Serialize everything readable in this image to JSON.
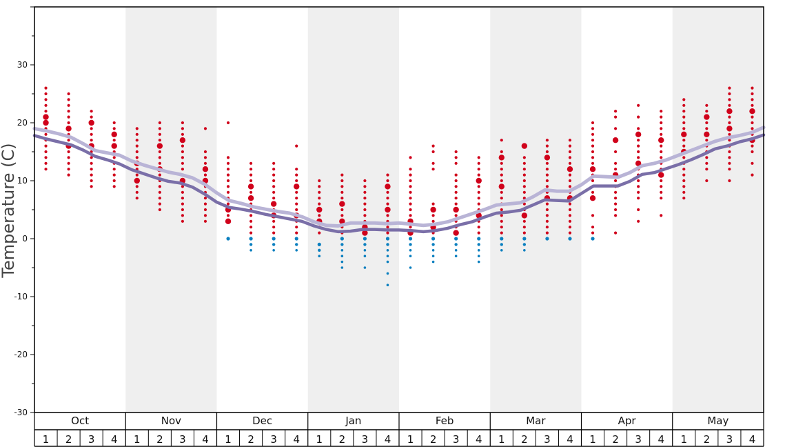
{
  "chart_data": {
    "type": "scatter",
    "ylabel": "Temperature (C)",
    "ylim": [
      -30,
      40
    ],
    "yticks": [
      "30",
      "20",
      "10",
      "0",
      "-10",
      "-20",
      "-30"
    ],
    "ytick_values": [
      30,
      20,
      10,
      0,
      -10,
      -20,
      -30
    ],
    "months": [
      "Oct",
      "Nov",
      "Dec",
      "Jan",
      "Feb",
      "Mar",
      "Apr",
      "May"
    ],
    "weeks": [
      "1",
      "2",
      "3",
      "4"
    ],
    "colors": {
      "warm_dot": "#d0021b",
      "cold_dot": "#0a7fbf",
      "line_max": "#b9b4d6",
      "line_min": "#7a6fa8",
      "band": "#efefef"
    },
    "series": [
      {
        "name": "",
        "style": "line_max",
        "values": [
          19,
          18.6,
          18.1,
          17.5,
          16.4,
          15.2,
          14.8,
          14.4,
          13.4,
          12.7,
          12.1,
          11.5,
          11.1,
          10.5,
          9.4,
          7.9,
          6.6,
          6.1,
          5.5,
          5.1,
          4.7,
          4.4,
          3.8,
          2.9,
          2.3,
          2.2,
          2.7,
          2.7,
          2.7,
          2.6,
          2.7,
          2.5,
          2.3,
          2.5,
          2.9,
          3.6,
          4.3,
          5,
          5.8,
          6,
          6.2,
          7.2,
          8.4,
          8.2,
          8.2,
          9.3,
          10.8,
          10.7,
          10.6,
          11.4,
          12.6,
          13,
          13.6,
          14.4,
          15.2,
          16,
          16.8,
          17.4,
          17.8,
          18.3,
          19.2
        ]
      },
      {
        "name": "",
        "style": "line_min",
        "values": [
          17.8,
          17.2,
          16.7,
          16.2,
          15.3,
          14.2,
          13.6,
          12.9,
          11.9,
          11.2,
          10.5,
          9.9,
          9.6,
          8.9,
          7.7,
          6.3,
          5.4,
          5.1,
          4.7,
          4.2,
          3.8,
          3.4,
          3,
          2.2,
          1.6,
          1.2,
          1.3,
          1.6,
          1.6,
          1.5,
          1.5,
          1.4,
          1.2,
          1.4,
          1.8,
          2.4,
          2.9,
          3.7,
          4.4,
          4.6,
          4.9,
          5.8,
          6.7,
          6.6,
          6.5,
          7.8,
          9.1,
          9.1,
          9.1,
          9.9,
          11.1,
          11.4,
          12.1,
          12.8,
          13.6,
          14.5,
          15.5,
          16,
          16.7,
          17.2,
          17.9
        ]
      }
    ],
    "points": [
      {
        "week": 0,
        "hot": [
          26,
          25,
          24,
          23,
          22,
          21,
          20,
          19,
          18,
          17,
          16,
          15,
          14,
          13,
          12
        ],
        "big": [
          21,
          20
        ],
        "cold": []
      },
      {
        "week": 1,
        "hot": [
          25,
          24,
          23,
          22,
          21,
          20,
          19,
          18,
          17,
          16,
          15,
          14,
          13,
          12,
          11
        ],
        "big": [
          19,
          16
        ],
        "cold": []
      },
      {
        "week": 2,
        "hot": [
          22,
          21,
          20,
          19,
          18,
          17,
          16,
          15,
          14,
          13,
          12,
          11,
          10,
          9
        ],
        "big": [
          20,
          16
        ],
        "cold": []
      },
      {
        "week": 3,
        "hot": [
          20,
          19,
          18,
          17,
          16,
          15,
          14,
          13,
          12,
          11,
          10,
          9
        ],
        "big": [
          18,
          16
        ],
        "cold": []
      },
      {
        "week": 4,
        "hot": [
          19,
          18,
          17,
          16,
          15,
          14,
          13,
          12,
          11,
          10,
          9,
          8,
          7
        ],
        "big": [
          13,
          10
        ],
        "cold": []
      },
      {
        "week": 5,
        "hot": [
          20,
          19,
          18,
          17,
          16,
          15,
          14,
          13,
          12,
          11,
          10,
          9,
          8,
          7,
          6,
          5
        ],
        "big": [
          16,
          12
        ],
        "cold": []
      },
      {
        "week": 6,
        "hot": [
          20,
          19,
          18,
          17,
          16,
          15,
          14,
          13,
          12,
          11,
          10,
          9,
          8,
          7,
          6,
          5,
          4,
          3
        ],
        "big": [
          17,
          10
        ],
        "cold": []
      },
      {
        "week": 7,
        "hot": [
          19,
          15,
          14,
          13,
          12,
          11,
          10,
          9,
          8,
          7,
          6,
          5,
          4,
          3
        ],
        "big": [
          12,
          10
        ],
        "cold": []
      },
      {
        "week": 8,
        "hot": [
          20,
          14,
          13,
          12,
          11,
          10,
          9,
          8,
          7,
          6,
          5,
          4,
          3
        ],
        "big": [
          5,
          3
        ],
        "cold": [
          0
        ]
      },
      {
        "week": 9,
        "hot": [
          13,
          12,
          11,
          10,
          9,
          8,
          7,
          6,
          5,
          4,
          3,
          2,
          1
        ],
        "big": [
          9,
          7
        ],
        "cold": [
          0,
          -1,
          -2
        ]
      },
      {
        "week": 10,
        "hot": [
          13,
          12,
          11,
          10,
          9,
          8,
          7,
          6,
          5,
          4,
          3,
          2,
          1
        ],
        "big": [
          6,
          4
        ],
        "cold": [
          0,
          -1,
          -2
        ]
      },
      {
        "week": 11,
        "hot": [
          16,
          12,
          11,
          10,
          9,
          8,
          7,
          6,
          5,
          4,
          3,
          2,
          1
        ],
        "big": [
          9,
          4
        ],
        "cold": [
          0,
          -1,
          -2
        ]
      },
      {
        "week": 12,
        "hot": [
          10,
          9,
          8,
          7,
          6,
          5,
          4,
          3,
          2,
          1
        ],
        "big": [
          5,
          3
        ],
        "cold": [
          -1,
          -2,
          -3
        ]
      },
      {
        "week": 13,
        "hot": [
          11,
          10,
          9,
          8,
          7,
          6,
          5,
          4,
          3,
          2,
          1
        ],
        "big": [
          6,
          3
        ],
        "cold": [
          0,
          -1,
          -2,
          -3,
          -4,
          -5
        ]
      },
      {
        "week": 14,
        "hot": [
          10,
          9,
          8,
          7,
          6,
          5,
          4,
          3,
          2,
          1
        ],
        "big": [
          2,
          1
        ],
        "cold": [
          0,
          -1,
          -2,
          -3,
          -5
        ]
      },
      {
        "week": 15,
        "hot": [
          11,
          10,
          9,
          8,
          7,
          6,
          5,
          4,
          3,
          2,
          1
        ],
        "big": [
          9,
          5
        ],
        "cold": [
          0,
          -1,
          -2,
          -3,
          -4,
          -6,
          -8
        ]
      },
      {
        "week": 16,
        "hot": [
          14,
          12,
          11,
          10,
          9,
          8,
          7,
          6,
          5,
          4,
          3,
          2,
          1
        ],
        "big": [
          3,
          1
        ],
        "cold": [
          0,
          -1,
          -2,
          -3,
          -5
        ]
      },
      {
        "week": 17,
        "hot": [
          16,
          15,
          13,
          12,
          6,
          5,
          4,
          3,
          2,
          1
        ],
        "big": [
          5,
          2
        ],
        "cold": [
          0,
          -1,
          -2,
          -3,
          -4
        ]
      },
      {
        "week": 18,
        "hot": [
          15,
          14,
          13,
          11,
          10,
          9,
          8,
          7,
          6,
          5,
          4,
          3,
          2,
          1
        ],
        "big": [
          5,
          1
        ],
        "cold": [
          0,
          -1,
          -2,
          -3
        ]
      },
      {
        "week": 19,
        "hot": [
          14,
          13,
          12,
          11,
          10,
          9,
          8,
          7,
          6,
          5,
          4,
          3,
          2,
          1
        ],
        "big": [
          10,
          4
        ],
        "cold": [
          0,
          -1,
          -2,
          -3,
          -4
        ]
      },
      {
        "week": 20,
        "hot": [
          17,
          15,
          14,
          13,
          12,
          11,
          10,
          9,
          8,
          7,
          6,
          5,
          4,
          3,
          2,
          1
        ],
        "big": [
          14,
          9
        ],
        "cold": [
          0,
          -1,
          -2
        ]
      },
      {
        "week": 21,
        "hot": [
          16,
          14,
          13,
          12,
          11,
          10,
          9,
          8,
          7,
          6,
          5,
          4,
          3,
          2,
          1
        ],
        "big": [
          16,
          4
        ],
        "cold": [
          0,
          -1,
          -2
        ]
      },
      {
        "week": 22,
        "hot": [
          17,
          16,
          15,
          14,
          13,
          12,
          11,
          10,
          9,
          8,
          7,
          6,
          5,
          4,
          3,
          2,
          1
        ],
        "big": [
          14,
          7
        ],
        "cold": [
          0
        ]
      },
      {
        "week": 23,
        "hot": [
          17,
          16,
          15,
          14,
          13,
          12,
          11,
          10,
          9,
          8,
          7,
          6,
          5,
          4,
          3,
          2,
          1
        ],
        "big": [
          12,
          7
        ],
        "cold": [
          0
        ]
      },
      {
        "week": 24,
        "hot": [
          20,
          19,
          18,
          17,
          16,
          15,
          14,
          13,
          12,
          11,
          10,
          9,
          8,
          7,
          4,
          2,
          1
        ],
        "big": [
          12,
          7
        ],
        "cold": [
          0
        ]
      },
      {
        "week": 25,
        "hot": [
          22,
          21,
          19,
          17,
          15,
          13,
          12,
          11,
          10,
          9,
          8,
          7,
          6,
          5,
          4,
          1
        ],
        "big": [
          17,
          11
        ],
        "cold": []
      },
      {
        "week": 26,
        "hot": [
          23,
          21,
          19,
          18,
          17,
          16,
          15,
          14,
          13,
          12,
          11,
          10,
          9,
          8,
          7,
          5,
          3
        ],
        "big": [
          18,
          13
        ],
        "cold": []
      },
      {
        "week": 27,
        "hot": [
          22,
          21,
          20,
          19,
          18,
          17,
          16,
          15,
          14,
          13,
          12,
          11,
          10,
          9,
          8,
          7,
          4
        ],
        "big": [
          17,
          11
        ],
        "cold": []
      },
      {
        "week": 28,
        "hot": [
          24,
          23,
          22,
          21,
          20,
          19,
          18,
          17,
          16,
          15,
          14,
          13,
          12,
          11,
          10,
          9,
          8,
          7
        ],
        "big": [
          18,
          15
        ],
        "cold": []
      },
      {
        "week": 29,
        "hot": [
          23,
          22,
          21,
          20,
          19,
          18,
          17,
          16,
          15,
          14,
          13,
          12,
          10
        ],
        "big": [
          21,
          18
        ],
        "cold": []
      },
      {
        "week": 30,
        "hot": [
          26,
          25,
          24,
          23,
          22,
          21,
          20,
          19,
          18,
          17,
          16,
          15,
          14,
          13,
          12,
          10
        ],
        "big": [
          22,
          19
        ],
        "cold": []
      },
      {
        "week": 31,
        "hot": [
          26,
          25,
          24,
          23,
          22,
          21,
          20,
          19,
          18,
          17,
          16,
          15,
          13,
          11
        ],
        "big": [
          22,
          17
        ],
        "cold": []
      }
    ]
  }
}
